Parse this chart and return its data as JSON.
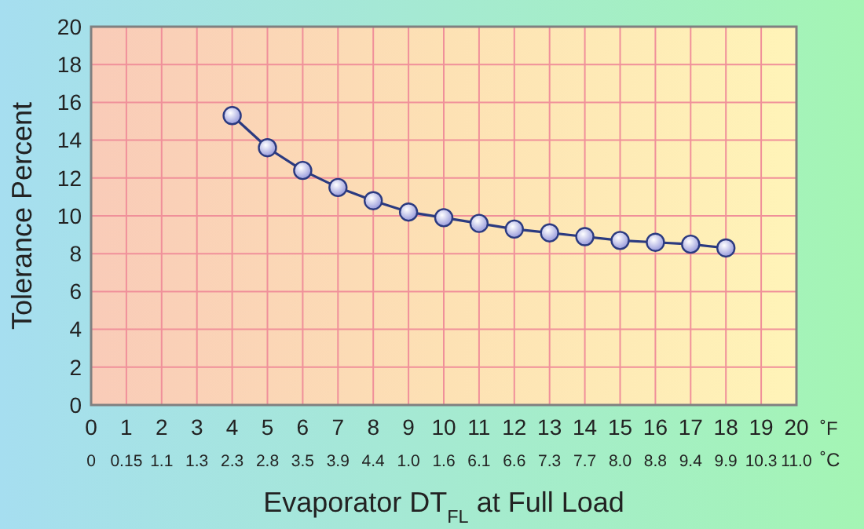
{
  "chart_data": {
    "type": "line",
    "xlabel": "Evaporator DT$_{FL}$ at Full Load",
    "ylabel": "Tolerance Percent",
    "x": [
      4,
      5,
      6,
      7,
      8,
      9,
      10,
      11,
      12,
      13,
      14,
      15,
      16,
      17,
      18
    ],
    "series": [
      {
        "color": "#2b3a80",
        "values": [
          15.3,
          13.6,
          12.4,
          11.5,
          10.8,
          10.2,
          9.9,
          9.6,
          9.3,
          9.1,
          8.9,
          8.7,
          8.6,
          8.5,
          8.3
        ]
      }
    ],
    "xlim": [
      0,
      20
    ],
    "xticks": [
      0,
      1,
      2,
      3,
      4,
      5,
      6,
      7,
      8,
      9,
      10,
      11,
      12,
      13,
      14,
      15,
      16,
      17,
      18,
      19,
      20
    ],
    "ylim": [
      0,
      20
    ],
    "yticks": [
      0,
      2,
      4,
      6,
      8,
      10,
      12,
      14,
      16,
      18,
      20
    ],
    "annotations": [
      "˚F",
      "˚C",
      "0",
      "0.15",
      "1.1",
      "1.3",
      "2.3",
      "2.8",
      "3.5",
      "3.9",
      "4.4",
      "1.0",
      "1.6",
      "6.1",
      "6.6",
      "7.3",
      "7.7",
      "8.0",
      "8.8",
      "9.4",
      "9.9",
      "10.3",
      "11.0"
    ],
    "grid": true,
    "marker": "circle",
    "line_style": "solid"
  }
}
